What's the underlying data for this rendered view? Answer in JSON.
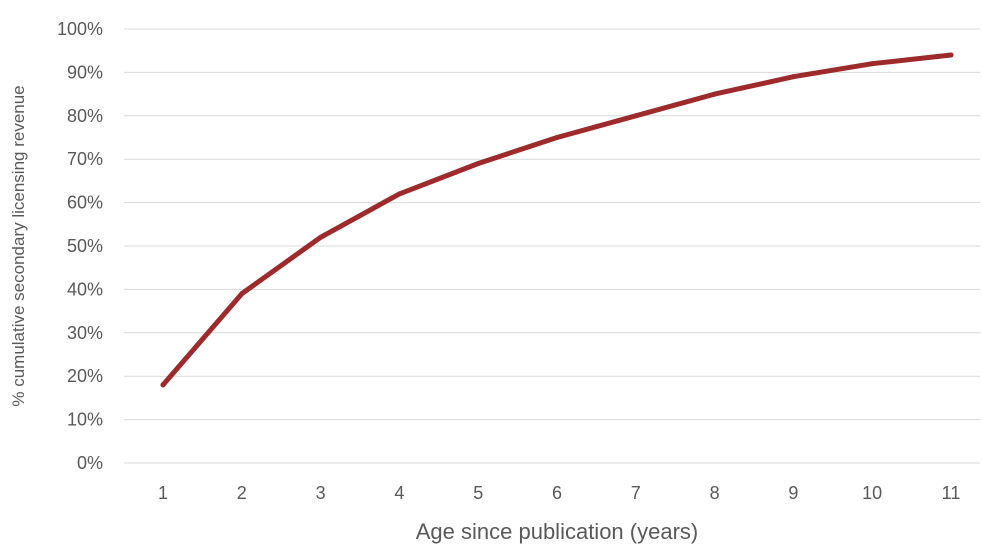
{
  "chart_data": {
    "type": "line",
    "title": "",
    "xlabel": "Age since publication (years)",
    "ylabel": "% cumulative secondary licensing revenue",
    "x": [
      1,
      2,
      3,
      4,
      5,
      6,
      7,
      8,
      9,
      10,
      11
    ],
    "x_tick_labels": [
      "1",
      "2",
      "3",
      "4",
      "5",
      "6",
      "7",
      "8",
      "9",
      "10",
      "11"
    ],
    "y_tick_labels": [
      "0%",
      "10%",
      "20%",
      "30%",
      "40%",
      "50%",
      "60%",
      "70%",
      "80%",
      "90%",
      "100%"
    ],
    "ylim": [
      0,
      100
    ],
    "y_unit": "%",
    "grid": true,
    "legend": "none",
    "series": [
      {
        "values": [
          18,
          39,
          52,
          62,
          69,
          75,
          80,
          85,
          89,
          92,
          94
        ],
        "color": "#9e2a2b"
      }
    ]
  }
}
